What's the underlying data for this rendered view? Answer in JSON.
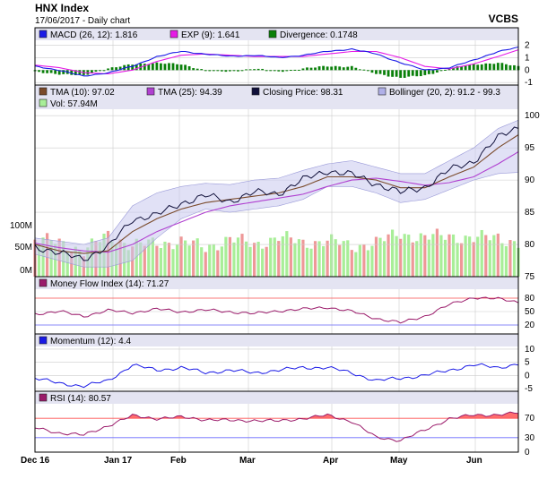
{
  "header": {
    "title": "HNX Index",
    "subtitle": "17/06/2017 - Daily chart",
    "brand": "VCBS"
  },
  "x_labels": [
    "Dec 16",
    "Jan 17",
    "Feb",
    "Mar",
    "Apr",
    "May",
    "Jun"
  ],
  "colors": {
    "panel_header_bg": "#e4e4f2",
    "band_fill": "#c8c8ee",
    "grid": "#cccccc",
    "up_vol": "#a8ee98",
    "down_vol": "#ee9898",
    "overbought": "#ff5555",
    "oversold": "#6b6bff"
  },
  "chart_data": [
    {
      "type": "line",
      "name": "macd_panel",
      "legend": [
        {
          "label": "MACD (26, 12): 1.816",
          "color": "#1a1ae6"
        },
        {
          "label": "EXP (9): 1.641",
          "color": "#e61ae6"
        },
        {
          "label": "Divergence: 0.1748",
          "color": "#0a800a"
        }
      ],
      "ylim": [
        -1.2,
        2.4
      ],
      "ticks": [
        2,
        1,
        0,
        -1
      ],
      "tick_labels": [
        "2",
        "1",
        "0",
        "-1"
      ],
      "x_index": [
        0,
        6,
        12,
        18,
        24,
        30,
        36,
        42,
        48,
        54,
        60,
        66,
        72,
        78,
        84,
        90,
        96,
        102,
        108,
        114,
        119
      ],
      "macd": [
        0.3,
        0.0,
        -0.5,
        -0.2,
        0.3,
        1.1,
        1.5,
        1.3,
        1.1,
        1.2,
        1.0,
        1.2,
        1.5,
        1.7,
        1.3,
        0.6,
        0.0,
        0.2,
        0.8,
        1.5,
        1.82
      ],
      "exp": [
        0.4,
        0.2,
        -0.2,
        -0.3,
        0.0,
        0.7,
        1.2,
        1.3,
        1.2,
        1.1,
        1.1,
        1.1,
        1.3,
        1.5,
        1.5,
        1.0,
        0.3,
        0.1,
        0.5,
        1.1,
        1.64
      ]
    },
    {
      "type": "line",
      "name": "price_panel",
      "legend": [
        {
          "label": "TMA (10): 97.02",
          "color": "#7a4a2a"
        },
        {
          "label": "TMA (25): 94.39",
          "color": "#b040d0"
        },
        {
          "label": "Closing Price: 98.31",
          "color": "#10103a"
        },
        {
          "label": "Bollinger (20, 2): 91.2 - 99.3",
          "color": "#b0b0e8"
        },
        {
          "label": "Vol: 57.94M",
          "color": "#a8ee98"
        }
      ],
      "ylim": [
        75,
        101
      ],
      "ticks": [
        100,
        95,
        90,
        85,
        80,
        75
      ],
      "tick_labels": [
        "100",
        "95",
        "90",
        "85",
        "80",
        "75"
      ],
      "volume_ticks": [
        "100M",
        "50M",
        "0M"
      ],
      "x_index": [
        0,
        6,
        12,
        18,
        24,
        30,
        36,
        42,
        48,
        54,
        60,
        66,
        72,
        78,
        84,
        90,
        96,
        102,
        108,
        114,
        119
      ],
      "close": [
        79.8,
        78.5,
        77.9,
        79.5,
        84.0,
        84.5,
        86.5,
        87.5,
        86.8,
        88.0,
        88.0,
        90.0,
        91.5,
        90.8,
        89.5,
        88.0,
        89.0,
        91.5,
        93.0,
        96.5,
        98.31
      ],
      "tma10": [
        80.0,
        79.0,
        78.6,
        79.0,
        82.0,
        84.0,
        85.5,
        86.5,
        87.0,
        87.5,
        88.0,
        89.0,
        90.5,
        90.5,
        90.0,
        88.8,
        88.8,
        90.5,
        92.0,
        95.0,
        97.02
      ],
      "tma25": [
        80.2,
        79.5,
        79.0,
        78.8,
        80.0,
        82.0,
        83.5,
        85.0,
        86.0,
        86.6,
        87.2,
        87.8,
        89.0,
        90.0,
        90.3,
        89.8,
        89.2,
        89.6,
        90.5,
        92.5,
        94.39
      ],
      "bb_upper": [
        81.0,
        80.5,
        80.0,
        81.0,
        86.0,
        88.0,
        89.0,
        89.5,
        89.3,
        90.0,
        90.3,
        91.5,
        92.5,
        93.0,
        92.0,
        91.0,
        91.0,
        93.0,
        95.0,
        98.0,
        99.3
      ],
      "bb_lower": [
        78.5,
        77.5,
        76.5,
        76.5,
        77.5,
        81.0,
        84.0,
        85.5,
        85.0,
        85.5,
        86.0,
        87.0,
        89.0,
        89.0,
        88.0,
        86.5,
        87.0,
        88.5,
        90.0,
        91.0,
        91.2
      ],
      "volume_m": [
        65,
        60,
        45,
        72,
        55,
        58,
        62,
        50,
        67,
        55,
        70,
        58,
        64,
        52,
        60,
        75,
        68,
        72,
        66,
        70,
        57.94
      ]
    },
    {
      "type": "line",
      "name": "mfi_panel",
      "legend": [
        {
          "label": "Money Flow Index (14): 71.27",
          "color": "#9a1a6a"
        }
      ],
      "ylim": [
        0,
        100
      ],
      "ticks": [
        80,
        50,
        20
      ],
      "tick_labels": [
        "80",
        "50",
        "20"
      ],
      "overbought": 80,
      "oversold": 20,
      "x_index": [
        0,
        6,
        12,
        18,
        24,
        30,
        36,
        42,
        48,
        54,
        60,
        66,
        72,
        78,
        84,
        90,
        96,
        102,
        108,
        114,
        119
      ],
      "values": [
        45,
        50,
        40,
        52,
        48,
        55,
        50,
        53,
        50,
        45,
        52,
        55,
        60,
        50,
        35,
        25,
        40,
        65,
        82,
        78,
        71.27
      ]
    },
    {
      "type": "line",
      "name": "momentum_panel",
      "legend": [
        {
          "label": "Momentum (12): 4.4",
          "color": "#1a1ae6"
        }
      ],
      "ylim": [
        -6,
        11
      ],
      "ticks": [
        10,
        5,
        0,
        -5
      ],
      "tick_labels": [
        "10",
        "5",
        "0",
        "-5"
      ],
      "x_index": [
        0,
        6,
        12,
        18,
        24,
        30,
        36,
        42,
        48,
        54,
        60,
        66,
        72,
        78,
        84,
        90,
        96,
        102,
        108,
        114,
        119
      ],
      "values": [
        -1,
        -3,
        -4,
        -2,
        4,
        2,
        3,
        1,
        2,
        1,
        2,
        3,
        3,
        1,
        -2,
        -1,
        0,
        2,
        4,
        3,
        4.4
      ]
    },
    {
      "type": "line",
      "name": "rsi_panel",
      "legend": [
        {
          "label": "RSI (14): 80.57",
          "color": "#9a1a6a"
        }
      ],
      "ylim": [
        0,
        100
      ],
      "ticks": [
        70,
        30,
        0
      ],
      "tick_labels": [
        "70",
        "30",
        "0"
      ],
      "overbought": 70,
      "oversold": 30,
      "x_index": [
        0,
        6,
        12,
        18,
        24,
        30,
        36,
        42,
        48,
        54,
        60,
        66,
        72,
        78,
        84,
        90,
        96,
        102,
        108,
        114,
        119
      ],
      "values": [
        50,
        40,
        35,
        55,
        75,
        70,
        72,
        68,
        65,
        66,
        64,
        70,
        76,
        64,
        30,
        25,
        45,
        70,
        76,
        78,
        80.57
      ]
    }
  ]
}
